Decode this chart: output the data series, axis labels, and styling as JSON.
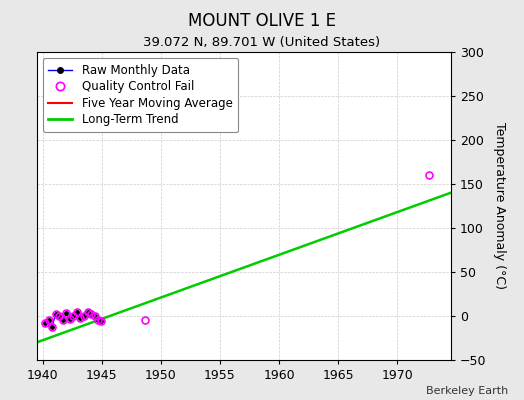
{
  "title": "MOUNT OLIVE 1 E",
  "subtitle": "39.072 N, 89.701 W (United States)",
  "ylabel": "Temperature Anomaly (°C)",
  "watermark": "Berkeley Earth",
  "xlim": [
    1939.5,
    1974.5
  ],
  "ylim": [
    -50,
    300
  ],
  "xticks": [
    1940,
    1945,
    1950,
    1955,
    1960,
    1965,
    1970
  ],
  "yticks": [
    -50,
    0,
    50,
    100,
    150,
    200,
    250,
    300
  ],
  "bg_color": "#e8e8e8",
  "plot_bg_color": "#ffffff",
  "raw_monthly_x": [
    1940.2,
    1940.5,
    1940.8,
    1941.1,
    1941.4,
    1941.7,
    1942.0,
    1942.3,
    1942.6,
    1942.9,
    1943.2,
    1943.5,
    1943.8,
    1944.1,
    1944.4,
    1944.7,
    1944.9
  ],
  "raw_monthly_y": [
    -8,
    -5,
    -12,
    2,
    0,
    -5,
    3,
    -3,
    0,
    5,
    -2,
    0,
    4,
    2,
    0,
    -4,
    -6
  ],
  "qc_fail_x": [
    1940.2,
    1940.5,
    1940.8,
    1941.1,
    1941.4,
    1941.7,
    1942.0,
    1942.3,
    1942.6,
    1942.9,
    1943.2,
    1943.5,
    1943.8,
    1944.1,
    1944.4,
    1944.7,
    1944.9,
    1948.7,
    1972.7
  ],
  "qc_fail_y": [
    -8,
    -5,
    -12,
    2,
    0,
    -5,
    3,
    -3,
    0,
    5,
    -2,
    0,
    4,
    2,
    0,
    -4,
    -6,
    -5,
    160
  ],
  "trend_x": [
    1939.5,
    1974.5
  ],
  "trend_y": [
    -30,
    140
  ],
  "raw_line_color": "#0000ff",
  "raw_marker_color": "#000000",
  "qc_marker_color": "#ff00ff",
  "trend_color": "#00cc00",
  "five_year_color": "#ff0000",
  "legend_fontsize": 8.5,
  "title_fontsize": 12,
  "subtitle_fontsize": 9.5,
  "tick_labelsize": 9,
  "ylabel_fontsize": 9
}
